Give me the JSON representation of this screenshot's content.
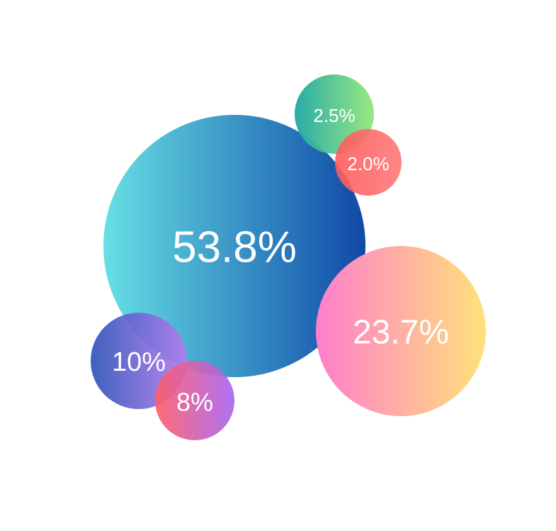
{
  "chart_data": {
    "type": "bubble",
    "title": "",
    "legend": "none",
    "grid": false,
    "points": [
      {
        "label": "53.8%",
        "value": 53.8,
        "gradient": [
          "#66e0e4",
          "#1049a8"
        ]
      },
      {
        "label": "23.7%",
        "value": 23.7,
        "gradient": [
          "#ff7ecb",
          "#ffe27a"
        ]
      },
      {
        "label": "10%",
        "value": 10,
        "gradient": [
          "#2f54b8",
          "#b57cf0"
        ]
      },
      {
        "label": "8%",
        "value": 8,
        "gradient": [
          "#ff5e6a",
          "#a866f4"
        ]
      },
      {
        "label": "2.5%",
        "value": 2.5,
        "gradient": [
          "#1ea7a4",
          "#94e87a"
        ]
      },
      {
        "label": "2.0%",
        "value": 2.0,
        "gradient": [
          "#ff5b5b",
          "#ff7a7a"
        ]
      }
    ]
  }
}
